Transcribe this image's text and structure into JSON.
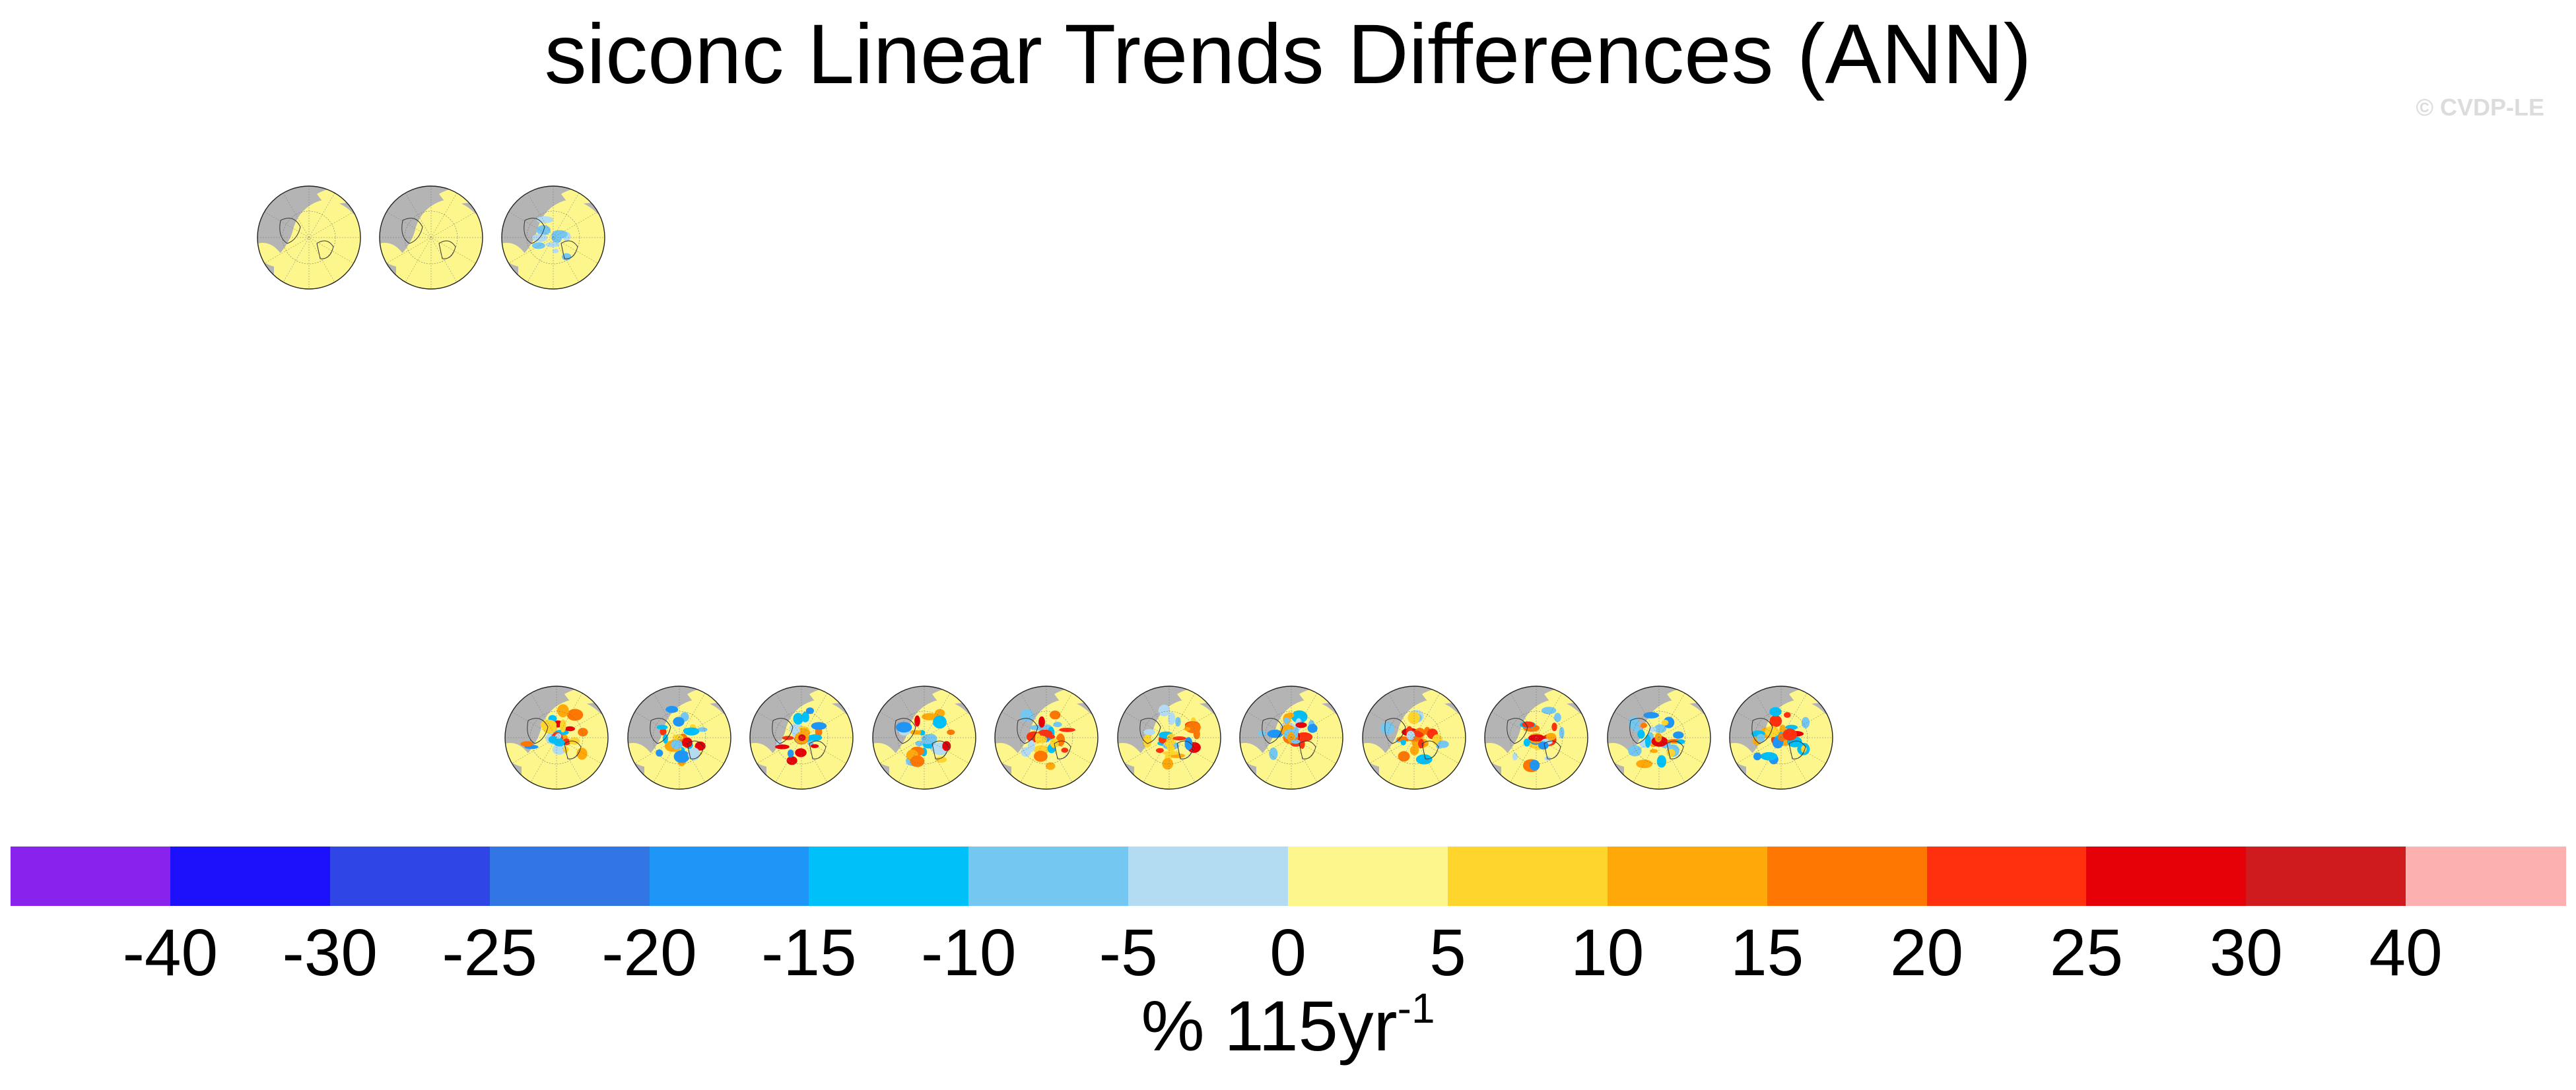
{
  "title": "siconc Linear Trends Differences (ANN)",
  "watermark": "© CVDP-LE",
  "units": {
    "text": "% 115yr",
    "superscript": "-1"
  },
  "chart_data": {
    "type": "heatmap",
    "title": "siconc Linear Trends Differences (ANN)",
    "variable": "siconc",
    "season": "ANN",
    "units": "% 115yr^-1",
    "projection": "north polar stereographic",
    "colorbar": {
      "tick_labels": [
        "-40",
        "-30",
        "-25",
        "-20",
        "-15",
        "-10",
        "-5",
        "0",
        "5",
        "10",
        "15",
        "20",
        "25",
        "30",
        "40"
      ],
      "levels": [
        -40,
        -30,
        -25,
        -20,
        -15,
        -10,
        -5,
        0,
        5,
        10,
        15,
        20,
        25,
        30,
        40
      ],
      "colors": [
        "#8a22ee",
        "#1d10fa",
        "#2f45e6",
        "#3276e6",
        "#1e96f7",
        "#00c0fa",
        "#74c7f0",
        "#b3dcf2",
        "#fdf68d",
        "#fed52c",
        "#fea909",
        "#fe7702",
        "#fe300d",
        "#e60007",
        "#cf1b1d",
        "#fdb0b0"
      ]
    },
    "rows": [
      {
        "panel_count": 3,
        "patterns": [
          "yellow",
          "yellow",
          "mixed-light"
        ]
      },
      {
        "panel_count": 11,
        "patterns": [
          "mixed",
          "mixed",
          "mixed",
          "mixed",
          "mixed",
          "mixed",
          "mixed",
          "mixed",
          "mixed",
          "mixed",
          "mixed"
        ]
      }
    ]
  }
}
